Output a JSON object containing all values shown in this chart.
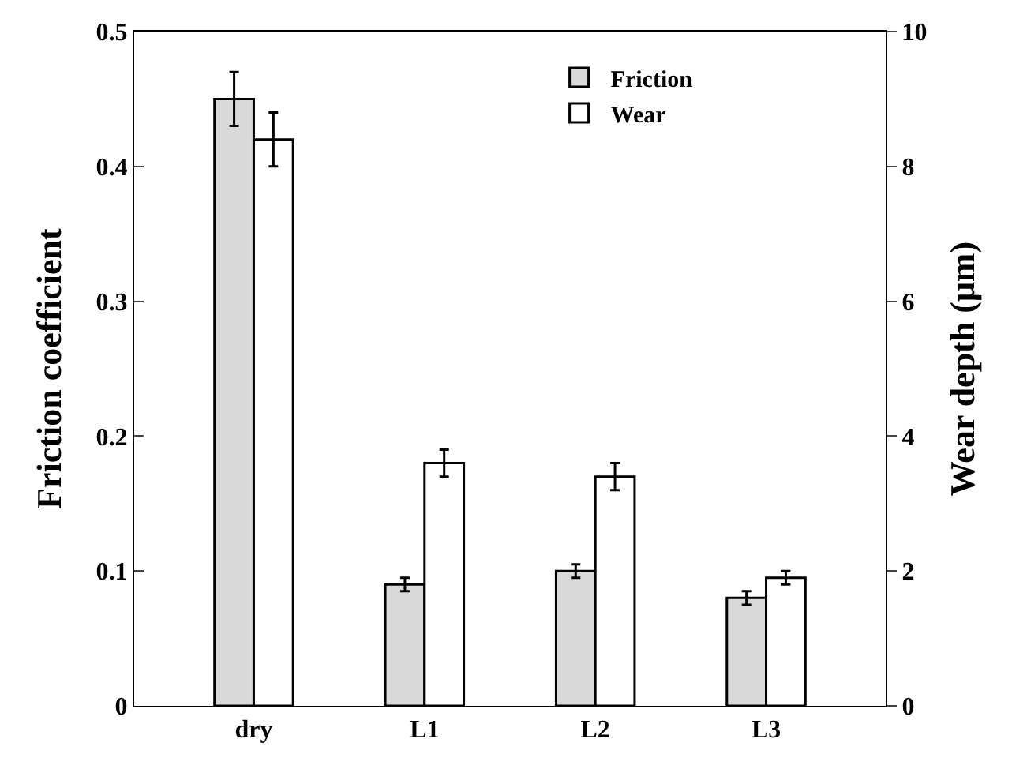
{
  "chart_data": {
    "type": "bar",
    "categories": [
      "dry",
      "L1",
      "L2",
      "L3"
    ],
    "series": [
      {
        "name": "Friction",
        "color": "#d9d9d9",
        "values": [
          0.45,
          0.09,
          0.1,
          0.08
        ],
        "errors": [
          0.02,
          0.005,
          0.005,
          0.005
        ]
      },
      {
        "name": "Wear",
        "color": "#ffffff",
        "axis": "y2",
        "values": [
          8.4,
          3.6,
          3.4,
          1.9
        ],
        "errors": [
          0.4,
          0.2,
          0.2,
          0.1
        ]
      }
    ],
    "ylabel": "Friction coefficient",
    "y2label": "Wear depth (μm)",
    "ylim": [
      0,
      0.5
    ],
    "yticks": [
      0,
      0.1,
      0.2,
      0.3,
      0.4,
      0.5
    ],
    "y2lim": [
      0,
      10
    ],
    "y2ticks": [
      0,
      2,
      4,
      6,
      8,
      10
    ],
    "legend": "top"
  }
}
